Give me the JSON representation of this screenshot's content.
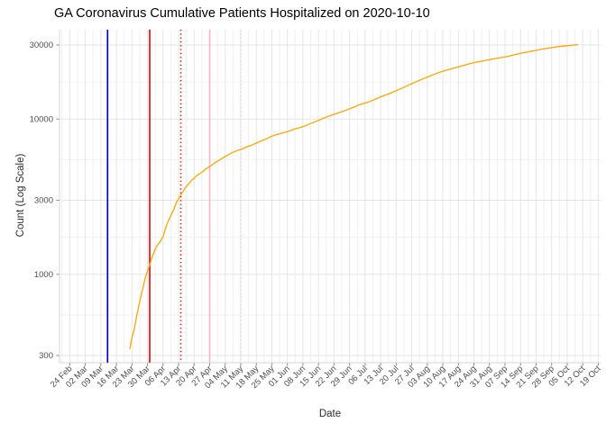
{
  "chart_data": {
    "type": "line",
    "title": "GA Coronavirus Cumulative Patients Hospitalized on 2020-10-10",
    "xlabel": "Date",
    "ylabel": "Count (Log Scale)",
    "legend": "none",
    "grid": "major-and-minor-light-gray",
    "x_axis": {
      "kind": "date",
      "range_start": "2020-02-18",
      "range_end": "2020-10-21",
      "tick_interval": "7 days",
      "ticks": [
        {
          "date": "2020-02-24",
          "label": "24 Feb"
        },
        {
          "date": "2020-03-02",
          "label": "02 Mar"
        },
        {
          "date": "2020-03-09",
          "label": "09 Mar"
        },
        {
          "date": "2020-03-16",
          "label": "16 Mar"
        },
        {
          "date": "2020-03-23",
          "label": "23 Mar"
        },
        {
          "date": "2020-03-30",
          "label": "30 Mar"
        },
        {
          "date": "2020-04-06",
          "label": "06 Apr"
        },
        {
          "date": "2020-04-13",
          "label": "13 Apr"
        },
        {
          "date": "2020-04-20",
          "label": "20 Apr"
        },
        {
          "date": "2020-04-27",
          "label": "27 Apr"
        },
        {
          "date": "2020-05-04",
          "label": "04 May"
        },
        {
          "date": "2020-05-11",
          "label": "11 May"
        },
        {
          "date": "2020-05-18",
          "label": "18 May"
        },
        {
          "date": "2020-05-25",
          "label": "25 May"
        },
        {
          "date": "2020-06-01",
          "label": "01 Jun"
        },
        {
          "date": "2020-06-08",
          "label": "08 Jun"
        },
        {
          "date": "2020-06-15",
          "label": "15 Jun"
        },
        {
          "date": "2020-06-22",
          "label": "22 Jun"
        },
        {
          "date": "2020-06-29",
          "label": "29 Jun"
        },
        {
          "date": "2020-07-06",
          "label": "06 Jul"
        },
        {
          "date": "2020-07-13",
          "label": "13 Jul"
        },
        {
          "date": "2020-07-20",
          "label": "20 Jul"
        },
        {
          "date": "2020-07-27",
          "label": "27 Jul"
        },
        {
          "date": "2020-08-03",
          "label": "03 Aug"
        },
        {
          "date": "2020-08-10",
          "label": "10 Aug"
        },
        {
          "date": "2020-08-17",
          "label": "17 Aug"
        },
        {
          "date": "2020-08-24",
          "label": "24 Aug"
        },
        {
          "date": "2020-08-31",
          "label": "31 Aug"
        },
        {
          "date": "2020-09-07",
          "label": "07 Sep"
        },
        {
          "date": "2020-09-14",
          "label": "14 Sep"
        },
        {
          "date": "2020-09-21",
          "label": "21 Sep"
        },
        {
          "date": "2020-09-28",
          "label": "28 Sep"
        },
        {
          "date": "2020-10-05",
          "label": "05 Oct"
        },
        {
          "date": "2020-10-12",
          "label": "12 Oct"
        },
        {
          "date": "2020-10-19",
          "label": "19 Oct"
        }
      ]
    },
    "y_axis": {
      "scale": "log10",
      "ticks": [
        300,
        1000,
        3000,
        10000,
        30000
      ],
      "tick_labels": [
        "300",
        "1000",
        "3000",
        "10000",
        "30000"
      ],
      "range": [
        280,
        33000
      ]
    },
    "vlines": [
      {
        "date": "2020-03-12",
        "color": "#0000c4",
        "style": "solid"
      },
      {
        "date": "2020-03-31",
        "color": "#e00000",
        "style": "solid"
      },
      {
        "date": "2020-04-14",
        "color": "#e00000",
        "style": "dotted"
      },
      {
        "date": "2020-04-27",
        "color": "#ffb6c1",
        "style": "solid"
      },
      {
        "date": "2020-05-11",
        "color": "#ffccd5",
        "style": "dotted"
      }
    ],
    "series": [
      {
        "name": "cumulative-hospitalized",
        "color": "#ffa500",
        "points": [
          {
            "date": "2020-03-22",
            "value": 330
          },
          {
            "date": "2020-03-23",
            "value": 390
          },
          {
            "date": "2020-03-24",
            "value": 440
          },
          {
            "date": "2020-03-25",
            "value": 530
          },
          {
            "date": "2020-03-26",
            "value": 620
          },
          {
            "date": "2020-03-27",
            "value": 720
          },
          {
            "date": "2020-03-28",
            "value": 830
          },
          {
            "date": "2020-03-29",
            "value": 950
          },
          {
            "date": "2020-03-30",
            "value": 1050
          },
          {
            "date": "2020-03-31",
            "value": 1150
          },
          {
            "date": "2020-04-01",
            "value": 1280
          },
          {
            "date": "2020-04-02",
            "value": 1400
          },
          {
            "date": "2020-04-03",
            "value": 1500
          },
          {
            "date": "2020-04-04",
            "value": 1580
          },
          {
            "date": "2020-04-05",
            "value": 1650
          },
          {
            "date": "2020-04-06",
            "value": 1750
          },
          {
            "date": "2020-04-07",
            "value": 1950
          },
          {
            "date": "2020-04-08",
            "value": 2150
          },
          {
            "date": "2020-04-09",
            "value": 2300
          },
          {
            "date": "2020-04-10",
            "value": 2480
          },
          {
            "date": "2020-04-11",
            "value": 2650
          },
          {
            "date": "2020-04-12",
            "value": 2900
          },
          {
            "date": "2020-04-13",
            "value": 3070
          },
          {
            "date": "2020-04-14",
            "value": 3250
          },
          {
            "date": "2020-04-15",
            "value": 3420
          },
          {
            "date": "2020-04-16",
            "value": 3600
          },
          {
            "date": "2020-04-17",
            "value": 3750
          },
          {
            "date": "2020-04-18",
            "value": 3900
          },
          {
            "date": "2020-04-19",
            "value": 4050
          },
          {
            "date": "2020-04-20",
            "value": 4150
          },
          {
            "date": "2020-04-21",
            "value": 4300
          },
          {
            "date": "2020-04-22",
            "value": 4400
          },
          {
            "date": "2020-04-23",
            "value": 4500
          },
          {
            "date": "2020-04-24",
            "value": 4600
          },
          {
            "date": "2020-04-25",
            "value": 4750
          },
          {
            "date": "2020-04-26",
            "value": 4850
          },
          {
            "date": "2020-04-27",
            "value": 4950
          },
          {
            "date": "2020-04-28",
            "value": 5050
          },
          {
            "date": "2020-04-29",
            "value": 5200
          },
          {
            "date": "2020-04-30",
            "value": 5300
          },
          {
            "date": "2020-05-02",
            "value": 5500
          },
          {
            "date": "2020-05-04",
            "value": 5750
          },
          {
            "date": "2020-05-06",
            "value": 5950
          },
          {
            "date": "2020-05-08",
            "value": 6150
          },
          {
            "date": "2020-05-10",
            "value": 6300
          },
          {
            "date": "2020-05-12",
            "value": 6450
          },
          {
            "date": "2020-05-14",
            "value": 6650
          },
          {
            "date": "2020-05-16",
            "value": 6800
          },
          {
            "date": "2020-05-18",
            "value": 7000
          },
          {
            "date": "2020-05-20",
            "value": 7200
          },
          {
            "date": "2020-05-22",
            "value": 7400
          },
          {
            "date": "2020-05-24",
            "value": 7650
          },
          {
            "date": "2020-05-26",
            "value": 7850
          },
          {
            "date": "2020-05-28",
            "value": 8000
          },
          {
            "date": "2020-05-30",
            "value": 8150
          },
          {
            "date": "2020-06-01",
            "value": 8300
          },
          {
            "date": "2020-06-03",
            "value": 8500
          },
          {
            "date": "2020-06-05",
            "value": 8700
          },
          {
            "date": "2020-06-07",
            "value": 8850
          },
          {
            "date": "2020-06-09",
            "value": 9050
          },
          {
            "date": "2020-06-11",
            "value": 9300
          },
          {
            "date": "2020-06-13",
            "value": 9550
          },
          {
            "date": "2020-06-15",
            "value": 9800
          },
          {
            "date": "2020-06-17",
            "value": 10100
          },
          {
            "date": "2020-06-19",
            "value": 10350
          },
          {
            "date": "2020-06-21",
            "value": 10600
          },
          {
            "date": "2020-06-23",
            "value": 10850
          },
          {
            "date": "2020-06-25",
            "value": 11100
          },
          {
            "date": "2020-06-27",
            "value": 11350
          },
          {
            "date": "2020-06-29",
            "value": 11650
          },
          {
            "date": "2020-07-01",
            "value": 11950
          },
          {
            "date": "2020-07-03",
            "value": 12300
          },
          {
            "date": "2020-07-05",
            "value": 12550
          },
          {
            "date": "2020-07-07",
            "value": 12800
          },
          {
            "date": "2020-07-09",
            "value": 13150
          },
          {
            "date": "2020-07-11",
            "value": 13500
          },
          {
            "date": "2020-07-13",
            "value": 13900
          },
          {
            "date": "2020-07-15",
            "value": 14250
          },
          {
            "date": "2020-07-17",
            "value": 14600
          },
          {
            "date": "2020-07-19",
            "value": 15000
          },
          {
            "date": "2020-07-21",
            "value": 15450
          },
          {
            "date": "2020-07-23",
            "value": 15900
          },
          {
            "date": "2020-07-25",
            "value": 16400
          },
          {
            "date": "2020-07-27",
            "value": 16900
          },
          {
            "date": "2020-07-29",
            "value": 17400
          },
          {
            "date": "2020-07-31",
            "value": 17900
          },
          {
            "date": "2020-08-02",
            "value": 18400
          },
          {
            "date": "2020-08-04",
            "value": 18900
          },
          {
            "date": "2020-08-06",
            "value": 19400
          },
          {
            "date": "2020-08-08",
            "value": 19900
          },
          {
            "date": "2020-08-10",
            "value": 20300
          },
          {
            "date": "2020-08-12",
            "value": 20700
          },
          {
            "date": "2020-08-14",
            "value": 21100
          },
          {
            "date": "2020-08-16",
            "value": 21500
          },
          {
            "date": "2020-08-18",
            "value": 21900
          },
          {
            "date": "2020-08-20",
            "value": 22300
          },
          {
            "date": "2020-08-22",
            "value": 22700
          },
          {
            "date": "2020-08-24",
            "value": 23100
          },
          {
            "date": "2020-08-26",
            "value": 23400
          },
          {
            "date": "2020-08-28",
            "value": 23700
          },
          {
            "date": "2020-08-30",
            "value": 24000
          },
          {
            "date": "2020-09-01",
            "value": 24300
          },
          {
            "date": "2020-09-03",
            "value": 24600
          },
          {
            "date": "2020-09-05",
            "value": 24900
          },
          {
            "date": "2020-09-07",
            "value": 25100
          },
          {
            "date": "2020-09-09",
            "value": 25500
          },
          {
            "date": "2020-09-11",
            "value": 25900
          },
          {
            "date": "2020-09-13",
            "value": 26300
          },
          {
            "date": "2020-09-15",
            "value": 26700
          },
          {
            "date": "2020-09-17",
            "value": 27000
          },
          {
            "date": "2020-09-19",
            "value": 27400
          },
          {
            "date": "2020-09-21",
            "value": 27700
          },
          {
            "date": "2020-09-23",
            "value": 28100
          },
          {
            "date": "2020-09-25",
            "value": 28400
          },
          {
            "date": "2020-09-27",
            "value": 28700
          },
          {
            "date": "2020-09-29",
            "value": 29000
          },
          {
            "date": "2020-10-01",
            "value": 29300
          },
          {
            "date": "2020-10-03",
            "value": 29500
          },
          {
            "date": "2020-10-05",
            "value": 29700
          },
          {
            "date": "2020-10-07",
            "value": 29900
          },
          {
            "date": "2020-10-09",
            "value": 30100
          },
          {
            "date": "2020-10-10",
            "value": 30200
          }
        ]
      }
    ],
    "colors": {
      "series_line": "#ffa500",
      "major_grid": "#e5e5e5",
      "minor_grid": "#f0f0f0",
      "axis_line": "#d6d6d6",
      "tick_mark": "#8a8a8a",
      "tick_text": "#4d4d4d",
      "title_text": "#000000"
    }
  }
}
